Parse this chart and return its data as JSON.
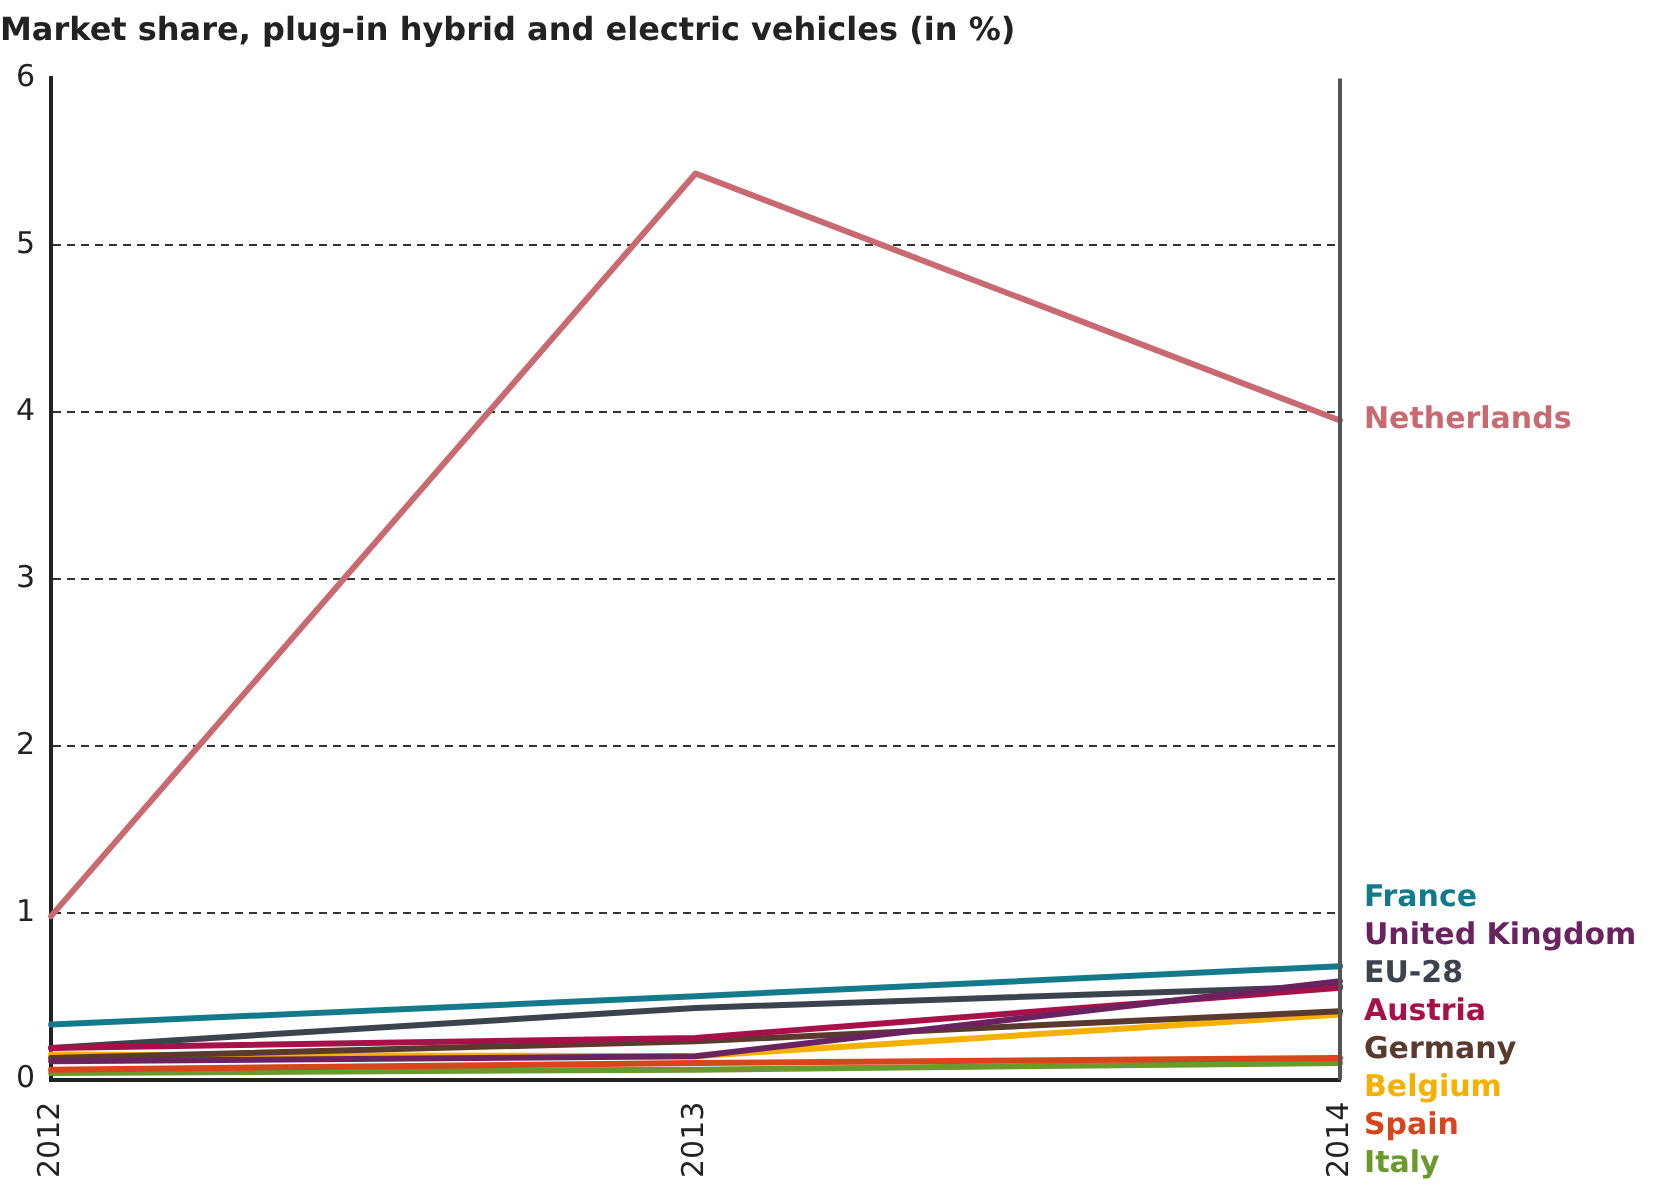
{
  "chart_data": {
    "type": "line",
    "title": "Market share, plug-in hybrid and electric vehicles (in %)",
    "categories": [
      "2012",
      "2013",
      "2014"
    ],
    "series": [
      {
        "name": "Netherlands",
        "color": "#c96a72",
        "values": [
          0.98,
          5.43,
          3.95
        ]
      },
      {
        "name": "France",
        "color": "#137a8c",
        "values": [
          0.33,
          0.5,
          0.68
        ]
      },
      {
        "name": "United Kingdom",
        "color": "#6b2360",
        "values": [
          0.11,
          0.14,
          0.59
        ]
      },
      {
        "name": "Austria",
        "color": "#a8104a",
        "values": [
          0.19,
          0.25,
          0.55
        ]
      },
      {
        "name": "EU-28",
        "color": "#3c434d",
        "values": [
          0.19,
          0.43,
          0.56
        ]
      },
      {
        "name": "Germany",
        "color": "#5a3a2e",
        "values": [
          0.13,
          0.23,
          0.41
        ]
      },
      {
        "name": "Belgium",
        "color": "#f5b000",
        "values": [
          0.15,
          0.14,
          0.39
        ]
      },
      {
        "name": "Spain",
        "color": "#d8441c",
        "values": [
          0.06,
          0.1,
          0.13
        ]
      },
      {
        "name": "Italy",
        "color": "#6a9a2c",
        "values": [
          0.04,
          0.06,
          0.1
        ]
      }
    ],
    "ylim": [
      0,
      6
    ],
    "yticks": [
      0,
      1,
      2,
      3,
      4,
      5,
      6
    ],
    "grid": "y",
    "legend": false,
    "marker": "none",
    "line_style": "solid"
  }
}
